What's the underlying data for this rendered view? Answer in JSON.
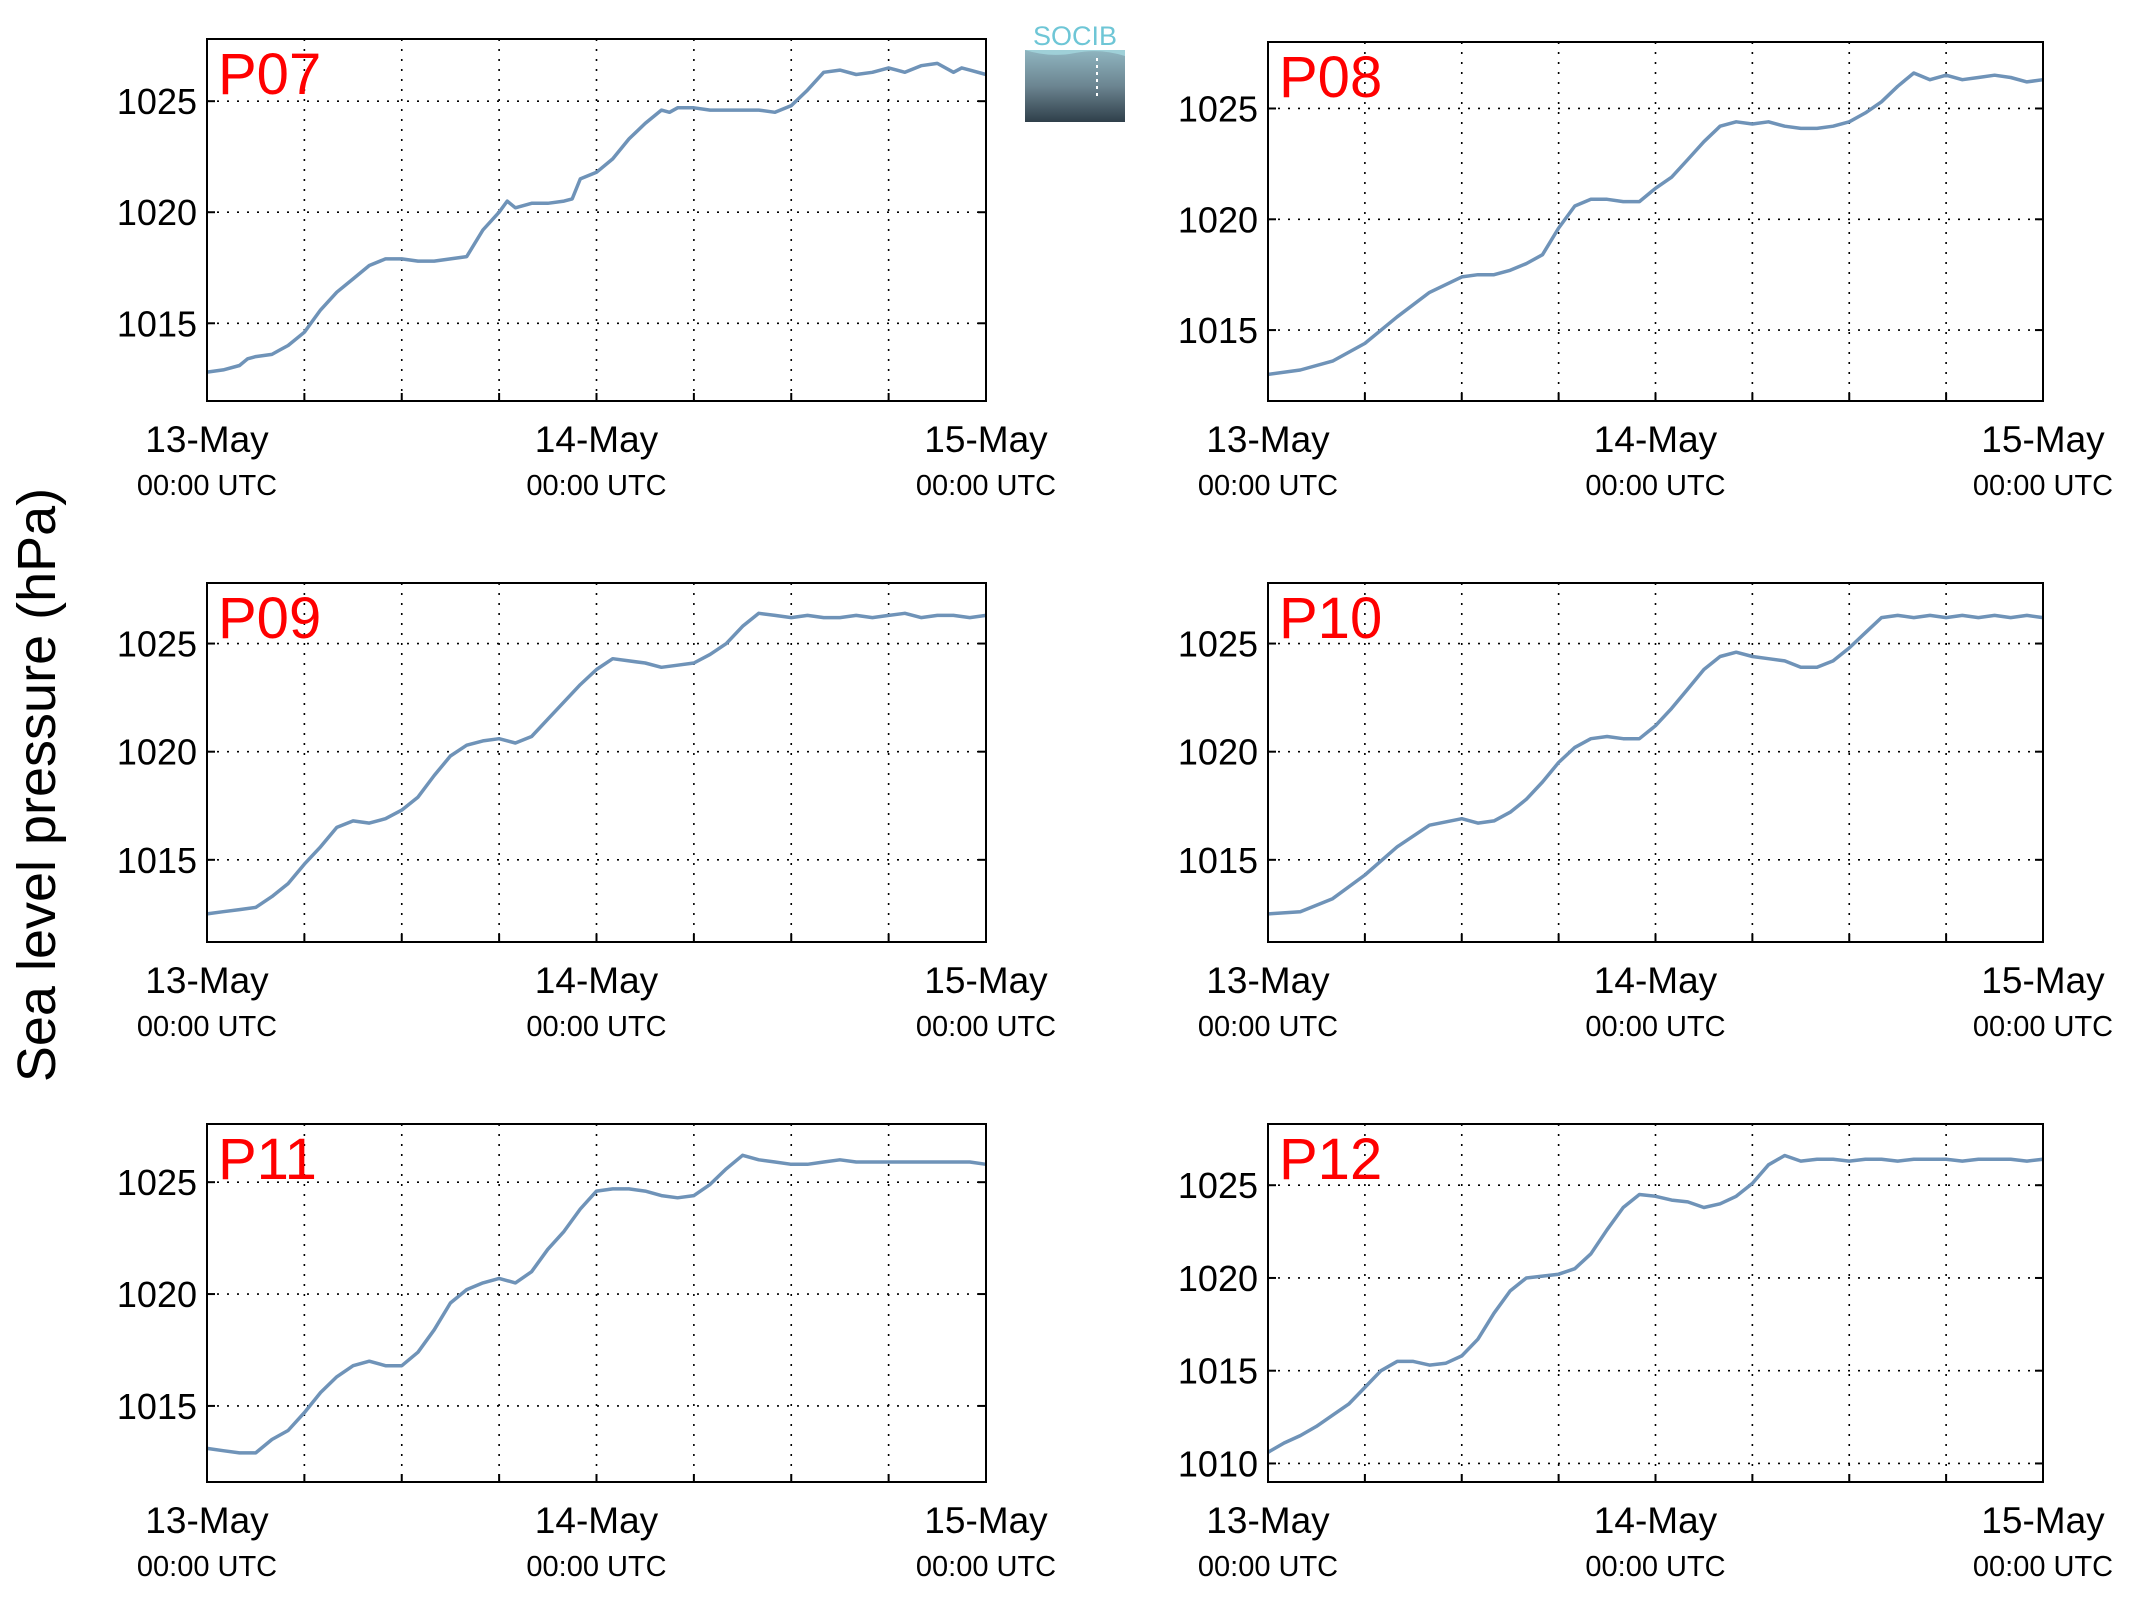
{
  "figure": {
    "ylabel": "Sea level pressure (hPa)",
    "logo_text": "SOCIB",
    "line_color": "#6f93b8",
    "label_color": "#ff0000"
  },
  "chart_data": [
    {
      "type": "line",
      "title": "P07",
      "ylim": [
        1011.5,
        1027.8
      ],
      "yticks": [
        1015,
        1020,
        1025
      ],
      "xlim": [
        0,
        48
      ],
      "xticks": [
        {
          "x": 0,
          "label": "13-May",
          "sublabel": "00:00 UTC"
        },
        {
          "x": 24,
          "label": "14-May",
          "sublabel": "00:00 UTC"
        },
        {
          "x": 48,
          "label": "15-May",
          "sublabel": "00:00 UTC"
        }
      ],
      "grid": true,
      "series": [
        {
          "x": [
            0,
            1,
            2,
            2.5,
            3,
            4,
            4.5,
            5,
            6,
            6.5,
            7,
            8,
            9,
            10,
            11,
            12,
            13,
            14,
            15,
            16,
            17,
            18,
            18.5,
            19,
            20,
            21,
            22,
            22.5,
            23,
            24,
            25,
            26,
            27,
            28,
            28.5,
            29,
            30,
            31,
            32,
            33,
            34,
            35,
            36,
            37,
            38,
            39,
            40,
            41,
            42,
            42.5,
            43,
            44,
            45,
            46,
            46.5,
            47,
            48
          ],
          "values": [
            1012.8,
            1012.9,
            1013.1,
            1013.4,
            1013.5,
            1013.6,
            1013.8,
            1014.0,
            1014.6,
            1015.1,
            1015.6,
            1016.4,
            1017.0,
            1017.6,
            1017.9,
            1017.9,
            1017.8,
            1017.8,
            1017.9,
            1018.0,
            1019.2,
            1020.0,
            1020.5,
            1020.2,
            1020.4,
            1020.4,
            1020.5,
            1020.6,
            1021.5,
            1021.8,
            1022.4,
            1023.3,
            1024.0,
            1024.6,
            1024.5,
            1024.7,
            1024.7,
            1024.6,
            1024.6,
            1024.6,
            1024.6,
            1024.5,
            1024.8,
            1025.5,
            1026.3,
            1026.4,
            1026.2,
            1026.3,
            1026.5,
            1026.4,
            1026.3,
            1026.6,
            1026.7,
            1026.3,
            1026.5,
            1026.4,
            1026.2
          ]
        }
      ]
    },
    {
      "type": "line",
      "title": "P08",
      "ylim": [
        1011.8,
        1028.0
      ],
      "yticks": [
        1015,
        1020,
        1025
      ],
      "xlim": [
        0,
        48
      ],
      "xticks": [
        {
          "x": 0,
          "label": "13-May",
          "sublabel": "00:00 UTC"
        },
        {
          "x": 24,
          "label": "14-May",
          "sublabel": "00:00 UTC"
        },
        {
          "x": 48,
          "label": "15-May",
          "sublabel": "00:00 UTC"
        }
      ],
      "grid": true,
      "series": [
        {
          "x": [
            0,
            2,
            4,
            6,
            8,
            10,
            12,
            13,
            14,
            15,
            16,
            17,
            18,
            19,
            20,
            21,
            22,
            23,
            24,
            25,
            26,
            27,
            28,
            29,
            30,
            31,
            32,
            33,
            34,
            35,
            36,
            37,
            38,
            39,
            40,
            41,
            42,
            43,
            44,
            45,
            46,
            47,
            48
          ],
          "values": [
            1013.0,
            1013.2,
            1013.6,
            1014.4,
            1015.6,
            1016.7,
            1017.4,
            1017.5,
            1017.5,
            1017.7,
            1018.0,
            1018.4,
            1019.6,
            1020.6,
            1020.9,
            1020.9,
            1020.8,
            1020.8,
            1021.4,
            1021.9,
            1022.7,
            1023.5,
            1024.2,
            1024.4,
            1024.3,
            1024.4,
            1024.2,
            1024.1,
            1024.1,
            1024.2,
            1024.4,
            1024.8,
            1025.3,
            1026.0,
            1026.6,
            1026.3,
            1026.5,
            1026.3,
            1026.4,
            1026.5,
            1026.4,
            1026.2,
            1026.3
          ]
        }
      ]
    },
    {
      "type": "line",
      "title": "P09",
      "ylim": [
        1011.2,
        1027.8
      ],
      "yticks": [
        1015,
        1020,
        1025
      ],
      "xlim": [
        0,
        48
      ],
      "xticks": [
        {
          "x": 0,
          "label": "13-May",
          "sublabel": "00:00 UTC"
        },
        {
          "x": 24,
          "label": "14-May",
          "sublabel": "00:00 UTC"
        },
        {
          "x": 48,
          "label": "15-May",
          "sublabel": "00:00 UTC"
        }
      ],
      "grid": true,
      "series": [
        {
          "x": [
            0,
            1,
            2,
            3,
            4,
            5,
            6,
            7,
            8,
            9,
            10,
            11,
            12,
            13,
            14,
            15,
            16,
            17,
            18,
            19,
            20,
            21,
            22,
            23,
            24,
            25,
            26,
            27,
            28,
            29,
            30,
            31,
            32,
            33,
            34,
            35,
            36,
            37,
            38,
            39,
            40,
            41,
            42,
            43,
            44,
            45,
            46,
            47,
            48
          ],
          "values": [
            1012.5,
            1012.6,
            1012.7,
            1012.8,
            1013.3,
            1013.9,
            1014.8,
            1015.6,
            1016.5,
            1016.8,
            1016.7,
            1016.9,
            1017.3,
            1017.9,
            1018.9,
            1019.8,
            1020.3,
            1020.5,
            1020.6,
            1020.4,
            1020.7,
            1021.5,
            1022.3,
            1023.1,
            1023.8,
            1024.3,
            1024.2,
            1024.1,
            1023.9,
            1024.0,
            1024.1,
            1024.5,
            1025.0,
            1025.8,
            1026.4,
            1026.3,
            1026.2,
            1026.3,
            1026.2,
            1026.2,
            1026.3,
            1026.2,
            1026.3,
            1026.4,
            1026.2,
            1026.3,
            1026.3,
            1026.2,
            1026.3
          ]
        }
      ]
    },
    {
      "type": "line",
      "title": "P10",
      "ylim": [
        1011.2,
        1027.8
      ],
      "yticks": [
        1015,
        1020,
        1025
      ],
      "xlim": [
        0,
        48
      ],
      "xticks": [
        {
          "x": 0,
          "label": "13-May",
          "sublabel": "00:00 UTC"
        },
        {
          "x": 24,
          "label": "14-May",
          "sublabel": "00:00 UTC"
        },
        {
          "x": 48,
          "label": "15-May",
          "sublabel": "00:00 UTC"
        }
      ],
      "grid": true,
      "series": [
        {
          "x": [
            0,
            2,
            4,
            6,
            8,
            10,
            12,
            13,
            14,
            15,
            16,
            17,
            18,
            19,
            20,
            21,
            22,
            23,
            24,
            25,
            26,
            27,
            28,
            29,
            30,
            31,
            32,
            33,
            34,
            35,
            36,
            37,
            38,
            39,
            40,
            41,
            42,
            43,
            44,
            45,
            46,
            47,
            48
          ],
          "values": [
            1012.5,
            1012.6,
            1013.2,
            1014.3,
            1015.6,
            1016.6,
            1016.9,
            1016.7,
            1016.8,
            1017.2,
            1017.8,
            1018.6,
            1019.5,
            1020.2,
            1020.6,
            1020.7,
            1020.6,
            1020.6,
            1021.2,
            1022.0,
            1022.9,
            1023.8,
            1024.4,
            1024.6,
            1024.4,
            1024.3,
            1024.2,
            1023.9,
            1023.9,
            1024.2,
            1024.8,
            1025.5,
            1026.2,
            1026.3,
            1026.2,
            1026.3,
            1026.2,
            1026.3,
            1026.2,
            1026.3,
            1026.2,
            1026.3,
            1026.2
          ]
        }
      ]
    },
    {
      "type": "line",
      "title": "P11",
      "ylim": [
        1011.6,
        1027.6
      ],
      "yticks": [
        1015,
        1020,
        1025
      ],
      "xlim": [
        0,
        48
      ],
      "xticks": [
        {
          "x": 0,
          "label": "13-May",
          "sublabel": "00:00 UTC"
        },
        {
          "x": 24,
          "label": "14-May",
          "sublabel": "00:00 UTC"
        },
        {
          "x": 48,
          "label": "15-May",
          "sublabel": "00:00 UTC"
        }
      ],
      "grid": true,
      "series": [
        {
          "x": [
            0,
            1,
            2,
            3,
            4,
            5,
            6,
            7,
            8,
            9,
            10,
            11,
            12,
            13,
            14,
            15,
            16,
            17,
            18,
            19,
            20,
            21,
            22,
            23,
            24,
            25,
            26,
            27,
            28,
            29,
            30,
            31,
            32,
            33,
            34,
            35,
            36,
            37,
            38,
            39,
            40,
            41,
            42,
            43,
            44,
            45,
            46,
            47,
            48
          ],
          "values": [
            1013.1,
            1013.0,
            1012.9,
            1012.9,
            1013.5,
            1013.9,
            1014.7,
            1015.6,
            1016.3,
            1016.8,
            1017.0,
            1016.8,
            1016.8,
            1017.4,
            1018.4,
            1019.6,
            1020.2,
            1020.5,
            1020.7,
            1020.5,
            1021.0,
            1022.0,
            1022.8,
            1023.8,
            1024.6,
            1024.7,
            1024.7,
            1024.6,
            1024.4,
            1024.3,
            1024.4,
            1024.9,
            1025.6,
            1026.2,
            1026.0,
            1025.9,
            1025.8,
            1025.8,
            1025.9,
            1026.0,
            1025.9,
            1025.9,
            1025.9,
            1025.9,
            1025.9,
            1025.9,
            1025.9,
            1025.9,
            1025.8
          ]
        }
      ]
    },
    {
      "type": "line",
      "title": "P12",
      "ylim": [
        1009.0,
        1028.3
      ],
      "yticks": [
        1010,
        1015,
        1020,
        1025
      ],
      "xlim": [
        0,
        48
      ],
      "xticks": [
        {
          "x": 0,
          "label": "13-May",
          "sublabel": "00:00 UTC"
        },
        {
          "x": 24,
          "label": "14-May",
          "sublabel": "00:00 UTC"
        },
        {
          "x": 48,
          "label": "15-May",
          "sublabel": "00:00 UTC"
        }
      ],
      "grid": true,
      "series": [
        {
          "x": [
            0,
            1,
            2,
            3,
            4,
            5,
            6,
            7,
            8,
            9,
            10,
            11,
            12,
            13,
            14,
            15,
            16,
            17,
            18,
            19,
            20,
            21,
            22,
            23,
            24,
            25,
            26,
            27,
            28,
            29,
            30,
            31,
            32,
            33,
            34,
            35,
            36,
            37,
            38,
            39,
            40,
            41,
            42,
            43,
            44,
            45,
            46,
            47,
            48
          ],
          "values": [
            1010.6,
            1011.1,
            1011.5,
            1012.0,
            1012.6,
            1013.2,
            1014.1,
            1015.0,
            1015.5,
            1015.5,
            1015.3,
            1015.4,
            1015.8,
            1016.7,
            1018.1,
            1019.3,
            1020.0,
            1020.1,
            1020.2,
            1020.5,
            1021.3,
            1022.6,
            1023.8,
            1024.5,
            1024.4,
            1024.2,
            1024.1,
            1023.8,
            1024.0,
            1024.4,
            1025.1,
            1026.1,
            1026.6,
            1026.3,
            1026.4,
            1026.4,
            1026.3,
            1026.4,
            1026.4,
            1026.3,
            1026.4,
            1026.4,
            1026.4,
            1026.3,
            1026.4,
            1026.4,
            1026.4,
            1026.3,
            1026.4
          ]
        }
      ]
    }
  ]
}
